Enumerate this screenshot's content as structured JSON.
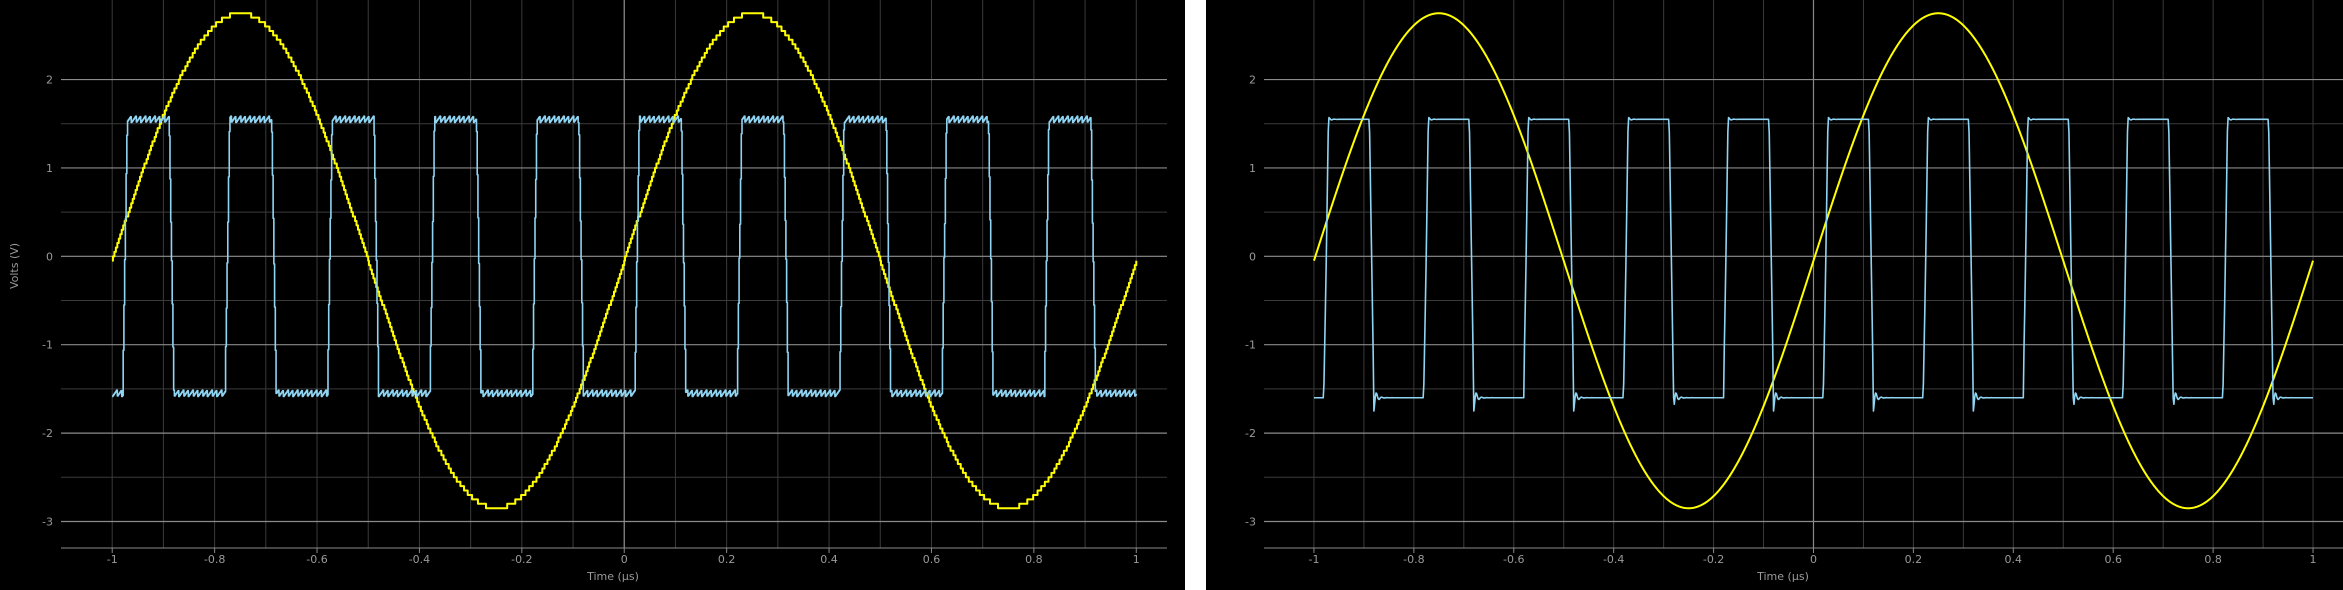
{
  "colors": {
    "background": "#000000",
    "separator": "#ffffff",
    "grid": "#3a3a3a",
    "major_grid": "#8a8a8a",
    "tick_text": "#9a9a9a",
    "sine": "#ffff00",
    "square": "#8fd4f2"
  },
  "chart_data": [
    {
      "type": "line",
      "variant": "stepped (sampled/quantized)",
      "xlabel": "Time (μs)",
      "ylabel": "Volts (V)",
      "xlim": [
        -1.1,
        1.06
      ],
      "ylim": [
        -3.3,
        2.9
      ],
      "x_ticks": [
        "-1",
        "-0.8",
        "-0.6",
        "-0.4",
        "-0.2",
        "0",
        "0.2",
        "0.4",
        "0.6",
        "0.8",
        "1"
      ],
      "y_ticks": [
        "2",
        "1",
        "0",
        "-1",
        "-2",
        "-3"
      ],
      "grid": true,
      "series": [
        {
          "color": "#ffff00",
          "shape": "sine",
          "amplitude": 2.8,
          "frequency_per_us": 1.0,
          "phase_rad": 0.0,
          "offset_v": -0.05,
          "x_range": [
            -1,
            1
          ]
        },
        {
          "color": "#8fd4f2",
          "shape": "square",
          "high_v": 1.55,
          "low_v": -1.55,
          "period_us": 0.2,
          "phase_us": 0.02,
          "x_range": [
            -1,
            1
          ]
        }
      ]
    },
    {
      "type": "line",
      "variant": "smooth (filtered)",
      "xlabel": "Time (μs)",
      "ylabel": "",
      "xlim": [
        -1.1,
        1.06
      ],
      "ylim": [
        -3.3,
        2.9
      ],
      "x_ticks": [
        "-1",
        "-0.8",
        "-0.6",
        "-0.4",
        "-0.2",
        "0",
        "0.2",
        "0.4",
        "0.6",
        "0.8",
        "1"
      ],
      "y_ticks": [
        "2",
        "1",
        "0",
        "-1",
        "-2",
        "-3"
      ],
      "grid": true,
      "series": [
        {
          "color": "#ffff00",
          "shape": "sine",
          "amplitude": 2.8,
          "frequency_per_us": 1.0,
          "phase_rad": 0.0,
          "offset_v": -0.05,
          "x_range": [
            -1,
            1
          ]
        },
        {
          "color": "#8fd4f2",
          "shape": "square-ringing",
          "high_v": 1.55,
          "low_v": -1.6,
          "overshoot_v": 0.15,
          "period_us": 0.2,
          "phase_us": 0.02,
          "x_range": [
            -1,
            1
          ]
        }
      ]
    }
  ]
}
